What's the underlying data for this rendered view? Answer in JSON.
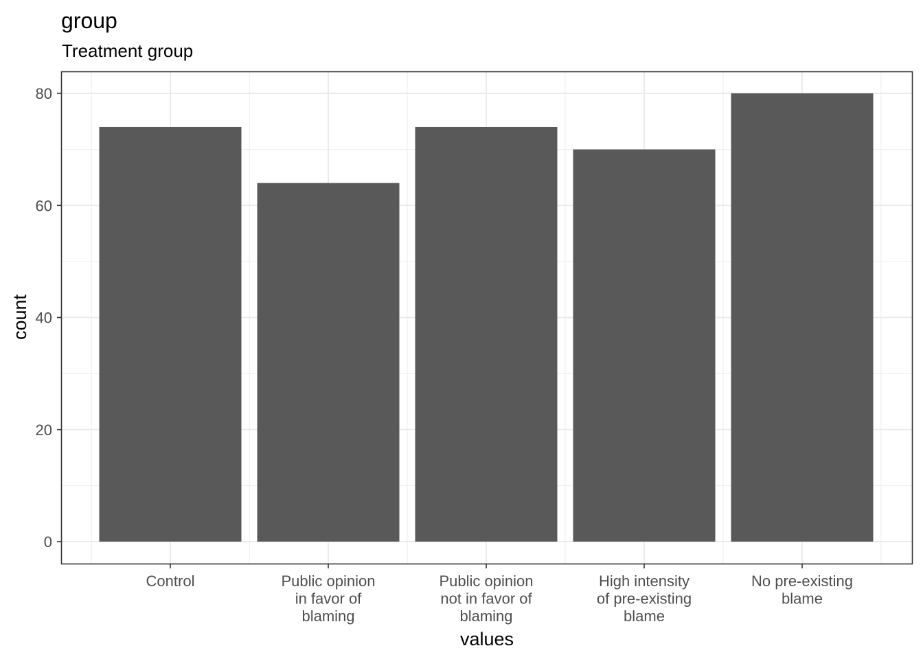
{
  "chart_data": {
    "type": "bar",
    "title": "group",
    "subtitle": "Treatment group",
    "xlabel": "values",
    "ylabel": "count",
    "categories": [
      [
        "Control"
      ],
      [
        "Public opinion",
        "in favor of",
        "blaming"
      ],
      [
        "Public opinion",
        "not in favor of",
        "blaming"
      ],
      [
        "High intensity",
        "of pre-existing",
        "blame"
      ],
      [
        "No pre-existing",
        "blame"
      ]
    ],
    "values": [
      74,
      64,
      74,
      70,
      80
    ],
    "ylim": [
      0,
      80
    ],
    "yticks": [
      0,
      20,
      40,
      60,
      80
    ],
    "grid": true,
    "colors": {
      "bar": "#595959",
      "grid": "#ebebeb",
      "panel_border": "#333333",
      "tick_text": "#4d4d4d"
    }
  }
}
